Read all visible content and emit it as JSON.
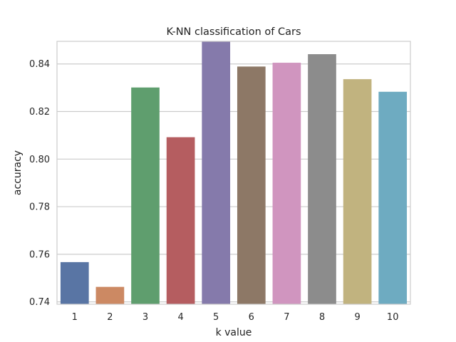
{
  "chart_data": {
    "type": "bar",
    "title": "K-NN classification of Cars",
    "xlabel": "k value",
    "ylabel": "accuracy",
    "categories": [
      "1",
      "2",
      "3",
      "4",
      "5",
      "6",
      "7",
      "8",
      "9",
      "10"
    ],
    "values": [
      0.7567,
      0.7463,
      0.8301,
      0.8092,
      0.8495,
      0.8389,
      0.8405,
      0.8441,
      0.8336,
      0.8283
    ],
    "colors": [
      "#5975a4",
      "#cc8963",
      "#5f9e6e",
      "#b55d60",
      "#857aab",
      "#8d7866",
      "#d095bf",
      "#8c8c8c",
      "#c1b37f",
      "#6eabc1"
    ],
    "ylim": [
      0.739,
      0.8495
    ],
    "yticks": [
      0.74,
      0.76,
      0.78,
      0.8,
      0.82,
      0.84
    ],
    "ytick_labels": [
      "0.74",
      "0.76",
      "0.78",
      "0.80",
      "0.82",
      "0.84"
    ],
    "grid": "horizontal",
    "legend": "none",
    "style": {
      "grid_color": "#cccccc",
      "spine_color": "#cccccc",
      "text_color": "#222222"
    }
  }
}
